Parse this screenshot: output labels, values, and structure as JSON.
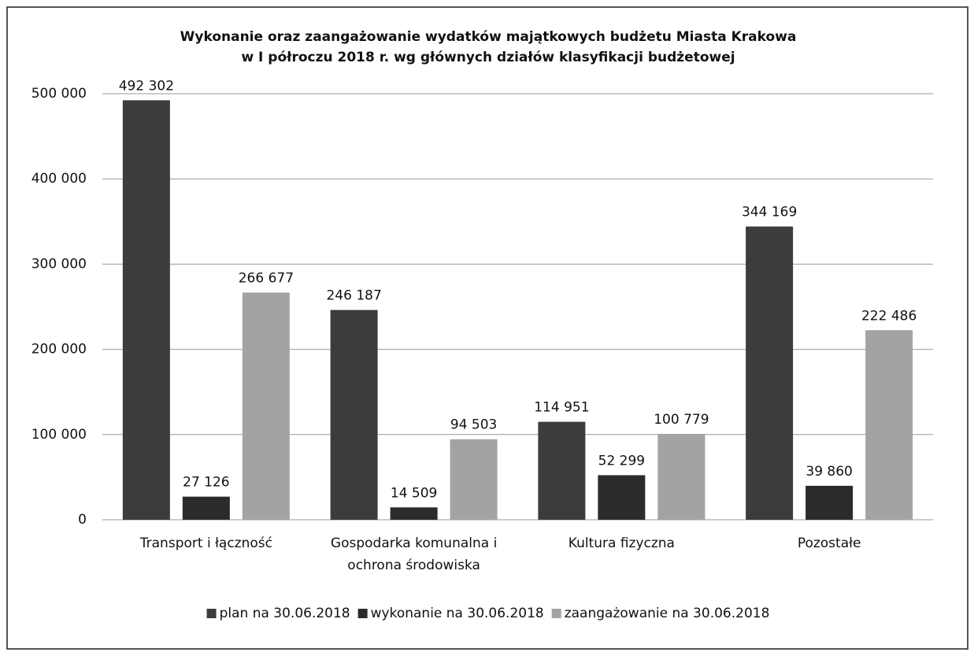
{
  "chart_data": {
    "type": "bar",
    "title": [
      "Wykonanie oraz zaangażowanie wydatków majątkowych budżetu Miasta Krakowa",
      "w I półroczu 2018 r. wg głównych działów klasyfikacji budżetowej"
    ],
    "categories": [
      "Transport i łączność",
      "Gospodarka komunalna i ochrona środowiska",
      "Kultura fizyczna",
      "Pozostałe"
    ],
    "series": [
      {
        "name": "plan na 30.06.2018",
        "color": "#3c3c3c",
        "values": [
          492302,
          246187,
          114951,
          344169
        ],
        "value_labels": [
          "492 302",
          "246 187",
          "114 951",
          "344 169"
        ]
      },
      {
        "name": "wykonanie na 30.06.2018",
        "color": "#2b2b2b",
        "values": [
          27126,
          14509,
          52299,
          39860
        ],
        "value_labels": [
          "27 126",
          "14 509",
          "52 299",
          "39 860"
        ]
      },
      {
        "name": "zaangażowanie na 30.06.2018",
        "color": "#a3a3a3",
        "values": [
          266677,
          94503,
          100779,
          222486
        ],
        "value_labels": [
          "266 677",
          "94 503",
          "100 779",
          "222 486"
        ]
      }
    ],
    "ylim": [
      0,
      500000
    ],
    "yticks": [
      0,
      {
        "value": 100000,
        "label": "100 000"
      },
      {
        "value": 200000,
        "label": "200 000"
      },
      {
        "value": 300000,
        "label": "300 000"
      },
      {
        "value": 400000,
        "label": "400 000"
      },
      {
        "value": 500000,
        "label": "500 000"
      }
    ],
    "grid": true,
    "legend": "bottom"
  }
}
